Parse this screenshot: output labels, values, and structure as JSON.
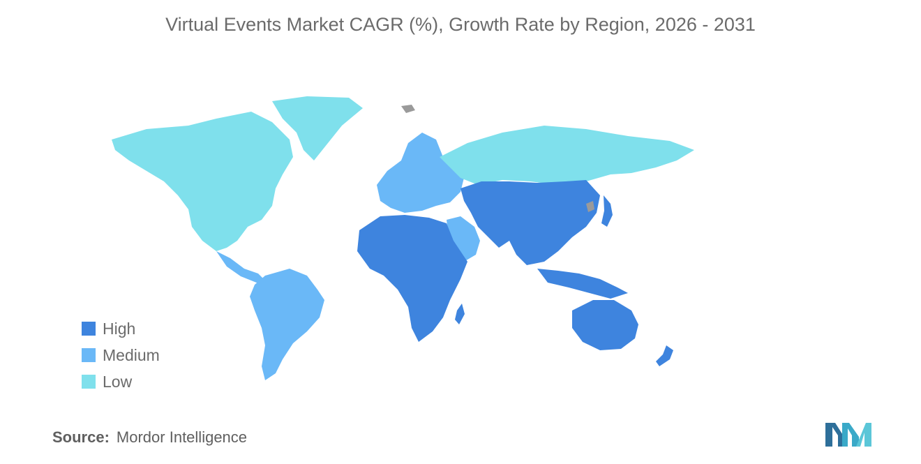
{
  "title": "Virtual Events Market CAGR (%), Growth Rate by Region, 2026 - 2031",
  "legend": [
    {
      "label": "High",
      "color": "#3e84de"
    },
    {
      "label": "Medium",
      "color": "#6ab8f7"
    },
    {
      "label": "Low",
      "color": "#7fe0ec"
    }
  ],
  "no_data_color": "#9a9a9a",
  "source": {
    "label": "Source:",
    "value": "Mordor Intelligence"
  },
  "regions": {
    "high": [
      "Asia-Pacific",
      "Africa",
      "Middle East (partial)"
    ],
    "medium": [
      "Europe",
      "Latin America",
      "Middle East (Gulf)"
    ],
    "low": [
      "North America",
      "Russia",
      "Greenland"
    ]
  }
}
